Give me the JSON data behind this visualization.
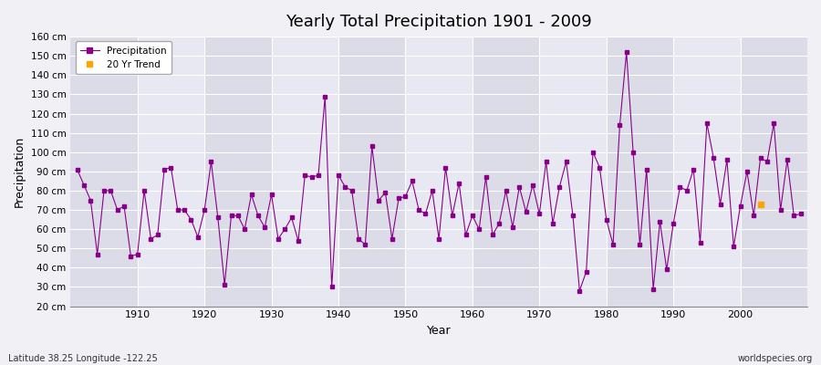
{
  "title": "Yearly Total Precipitation 1901 - 2009",
  "xlabel": "Year",
  "ylabel": "Precipitation",
  "subtitle_left": "Latitude 38.25 Longitude -122.25",
  "watermark": "worldspecies.org",
  "ylim": [
    20,
    160
  ],
  "yticks": [
    20,
    30,
    40,
    50,
    60,
    70,
    80,
    90,
    100,
    110,
    120,
    130,
    140,
    150,
    160
  ],
  "ytick_labels": [
    "20 cm",
    "30 cm",
    "40 cm",
    "50 cm",
    "60 cm",
    "70 cm",
    "80 cm",
    "90 cm",
    "100 cm",
    "110 cm",
    "120 cm",
    "130 cm",
    "140 cm",
    "150 cm",
    "160 cm"
  ],
  "precip_color": "#880088",
  "trend_color": "#FFA500",
  "bg_color": "#F0F0F5",
  "band_color_dark": "#DCDCE8",
  "band_color_light": "#E8E8F2",
  "grid_color": "#ffffff",
  "years": [
    1901,
    1902,
    1903,
    1904,
    1905,
    1906,
    1907,
    1908,
    1909,
    1910,
    1911,
    1912,
    1913,
    1914,
    1915,
    1916,
    1917,
    1918,
    1919,
    1920,
    1921,
    1922,
    1923,
    1924,
    1925,
    1926,
    1927,
    1928,
    1929,
    1930,
    1931,
    1932,
    1933,
    1934,
    1935,
    1936,
    1937,
    1938,
    1939,
    1940,
    1941,
    1942,
    1943,
    1944,
    1945,
    1946,
    1947,
    1948,
    1949,
    1950,
    1951,
    1952,
    1953,
    1954,
    1955,
    1956,
    1957,
    1958,
    1959,
    1960,
    1961,
    1962,
    1963,
    1964,
    1965,
    1966,
    1967,
    1968,
    1969,
    1970,
    1971,
    1972,
    1973,
    1974,
    1975,
    1976,
    1977,
    1978,
    1979,
    1980,
    1981,
    1982,
    1983,
    1984,
    1985,
    1986,
    1987,
    1988,
    1989,
    1990,
    1991,
    1992,
    1993,
    1994,
    1995,
    1996,
    1997,
    1998,
    1999,
    2000,
    2001,
    2002,
    2003,
    2004,
    2005,
    2006,
    2007,
    2008,
    2009
  ],
  "precip": [
    91,
    83,
    75,
    47,
    80,
    80,
    70,
    72,
    46,
    47,
    80,
    55,
    57,
    91,
    92,
    70,
    70,
    65,
    56,
    70,
    95,
    66,
    31,
    67,
    67,
    60,
    78,
    67,
    61,
    78,
    55,
    60,
    66,
    54,
    88,
    87,
    88,
    129,
    30,
    88,
    82,
    80,
    55,
    52,
    103,
    75,
    79,
    55,
    76,
    77,
    85,
    70,
    68,
    80,
    55,
    92,
    67,
    84,
    57,
    67,
    60,
    87,
    57,
    63,
    80,
    61,
    82,
    69,
    83,
    68,
    95,
    63,
    82,
    95,
    67,
    28,
    38,
    100,
    92,
    65,
    52,
    114,
    152,
    100,
    52,
    91,
    29,
    64,
    39,
    63,
    82,
    80,
    91,
    53,
    115,
    97,
    73,
    96,
    51,
    72,
    90,
    67,
    97,
    95,
    115,
    70,
    96,
    67,
    68
  ],
  "trend_years": [
    2003
  ],
  "trend_values": [
    73
  ],
  "xlim": [
    1900,
    2010
  ],
  "xticks": [
    1910,
    1920,
    1930,
    1940,
    1950,
    1960,
    1970,
    1980,
    1990,
    2000
  ]
}
